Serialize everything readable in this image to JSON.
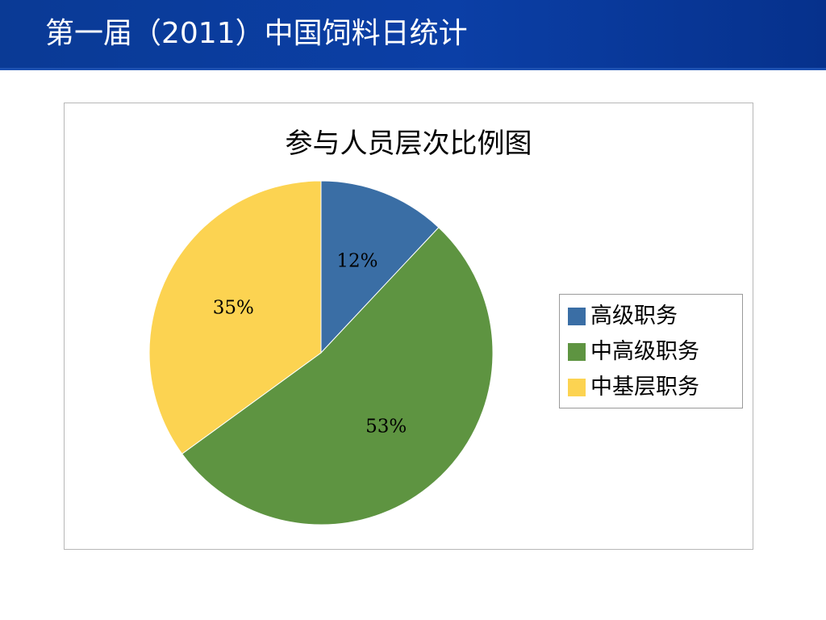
{
  "slide": {
    "title": "第一届（2011）中国饲料日统计"
  },
  "chart_data": {
    "type": "pie",
    "title": "参与人员层次比例图",
    "categories": [
      "高级职务",
      "中高级职务",
      "中基层职务"
    ],
    "values": [
      12,
      53,
      35
    ],
    "labels": [
      "12%",
      "53%",
      "35%"
    ],
    "colors": [
      "#3a6ea5",
      "#5e9441",
      "#fcd351"
    ],
    "legend_position": "right",
    "start_angle": "12 o'clock",
    "direction": "clockwise"
  }
}
